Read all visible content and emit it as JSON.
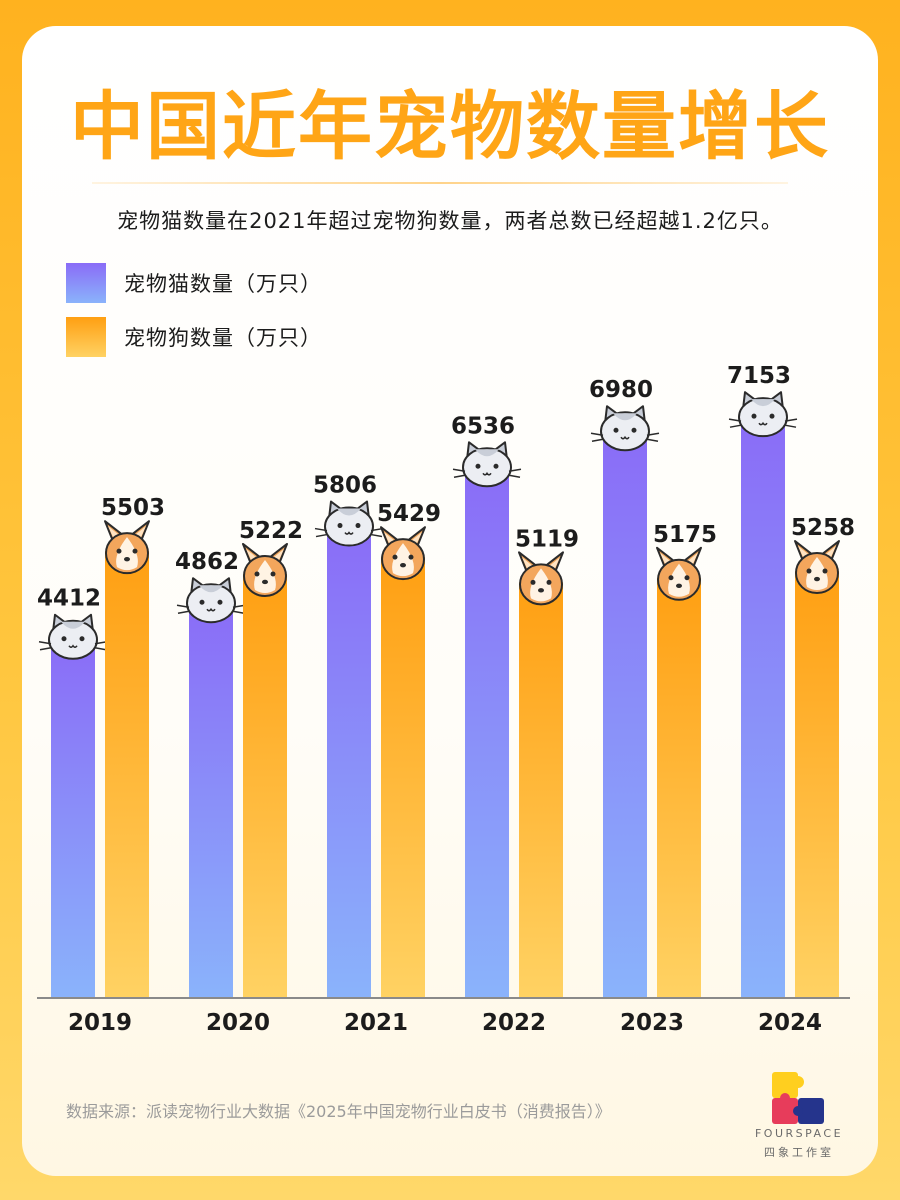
{
  "title": "中国近年宠物数量增长",
  "subtitle": "宠物猫数量在2021年超过宠物狗数量，两者总数已经超越1.2亿只。",
  "source": "数据来源：派读宠物行业大数据《2025年中国宠物行业白皮书（消费报告）》",
  "logo": {
    "name": "FOURSPACE",
    "subname": "四象工作室"
  },
  "colors": {
    "cat_top": "#8a6cf7",
    "cat_bottom": "#8ab3fb",
    "dog_top": "#ff9f12",
    "dog_bottom": "#ffd263",
    "title": "#ffa516"
  },
  "chart_data": {
    "type": "bar",
    "categories": [
      "2019",
      "2020",
      "2021",
      "2022",
      "2023",
      "2024"
    ],
    "series": [
      {
        "name": "宠物猫数量（万只）",
        "values": [
          4412,
          4862,
          5806,
          6536,
          6980,
          7153
        ],
        "icon": "cat-face-icon"
      },
      {
        "name": "宠物狗数量（万只）",
        "values": [
          5503,
          5222,
          5429,
          5119,
          5175,
          5258
        ],
        "icon": "dog-face-icon"
      }
    ],
    "grid": false,
    "legend_position": "top-left"
  }
}
